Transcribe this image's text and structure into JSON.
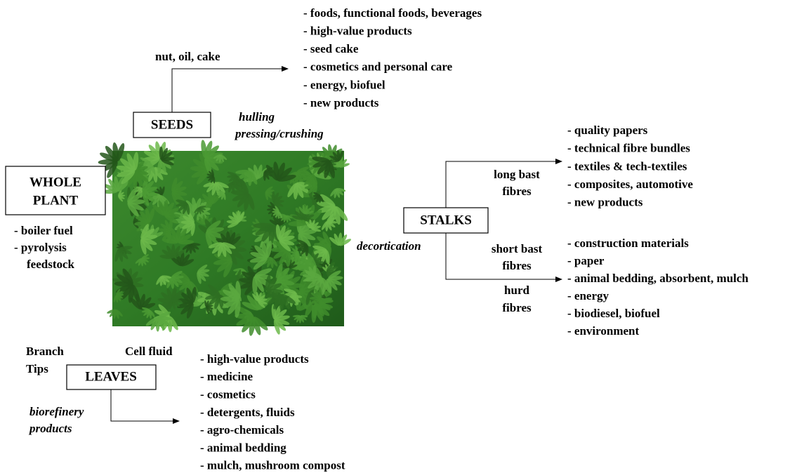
{
  "whole_plant": {
    "label": [
      "WHOLE",
      "PLANT"
    ],
    "uses": [
      "- boiler fuel",
      "- pyrolysis",
      "feedstock"
    ]
  },
  "seeds": {
    "label": "SEEDS",
    "process": [
      "hulling",
      "pressing/crushing"
    ],
    "branch": "nut, oil, cake",
    "products": [
      "- foods, functional foods, beverages",
      "- high-value products",
      "- seed cake",
      "- cosmetics and personal care",
      "- energy, biofuel",
      "- new products"
    ]
  },
  "stalks": {
    "label": "STALKS",
    "process": "decortication",
    "long_bast": [
      "long bast",
      "fibres"
    ],
    "short_bast": [
      "short bast",
      "fibres"
    ],
    "hurd": [
      "hurd",
      "fibres"
    ],
    "long_bast_products": [
      "- quality papers",
      "- technical fibre bundles",
      "- textiles & tech-textiles",
      "- composites, automotive",
      "- new products"
    ],
    "short_products": [
      "- construction materials",
      "- paper",
      "- animal bedding, absorbent, mulch",
      "- energy",
      "- biodiesel, biofuel",
      "- environment"
    ]
  },
  "leaves": {
    "label": "LEAVES",
    "branch_tips": [
      "Branch",
      "Tips"
    ],
    "cell_fluid": "Cell fluid",
    "process": [
      "biorefinery",
      "products"
    ],
    "products": [
      "- high-value products",
      "- medicine",
      "- cosmetics",
      "- detergents, fluids",
      "- agro-chemicals",
      "- animal bedding",
      "- mulch, mushroom compost"
    ]
  }
}
